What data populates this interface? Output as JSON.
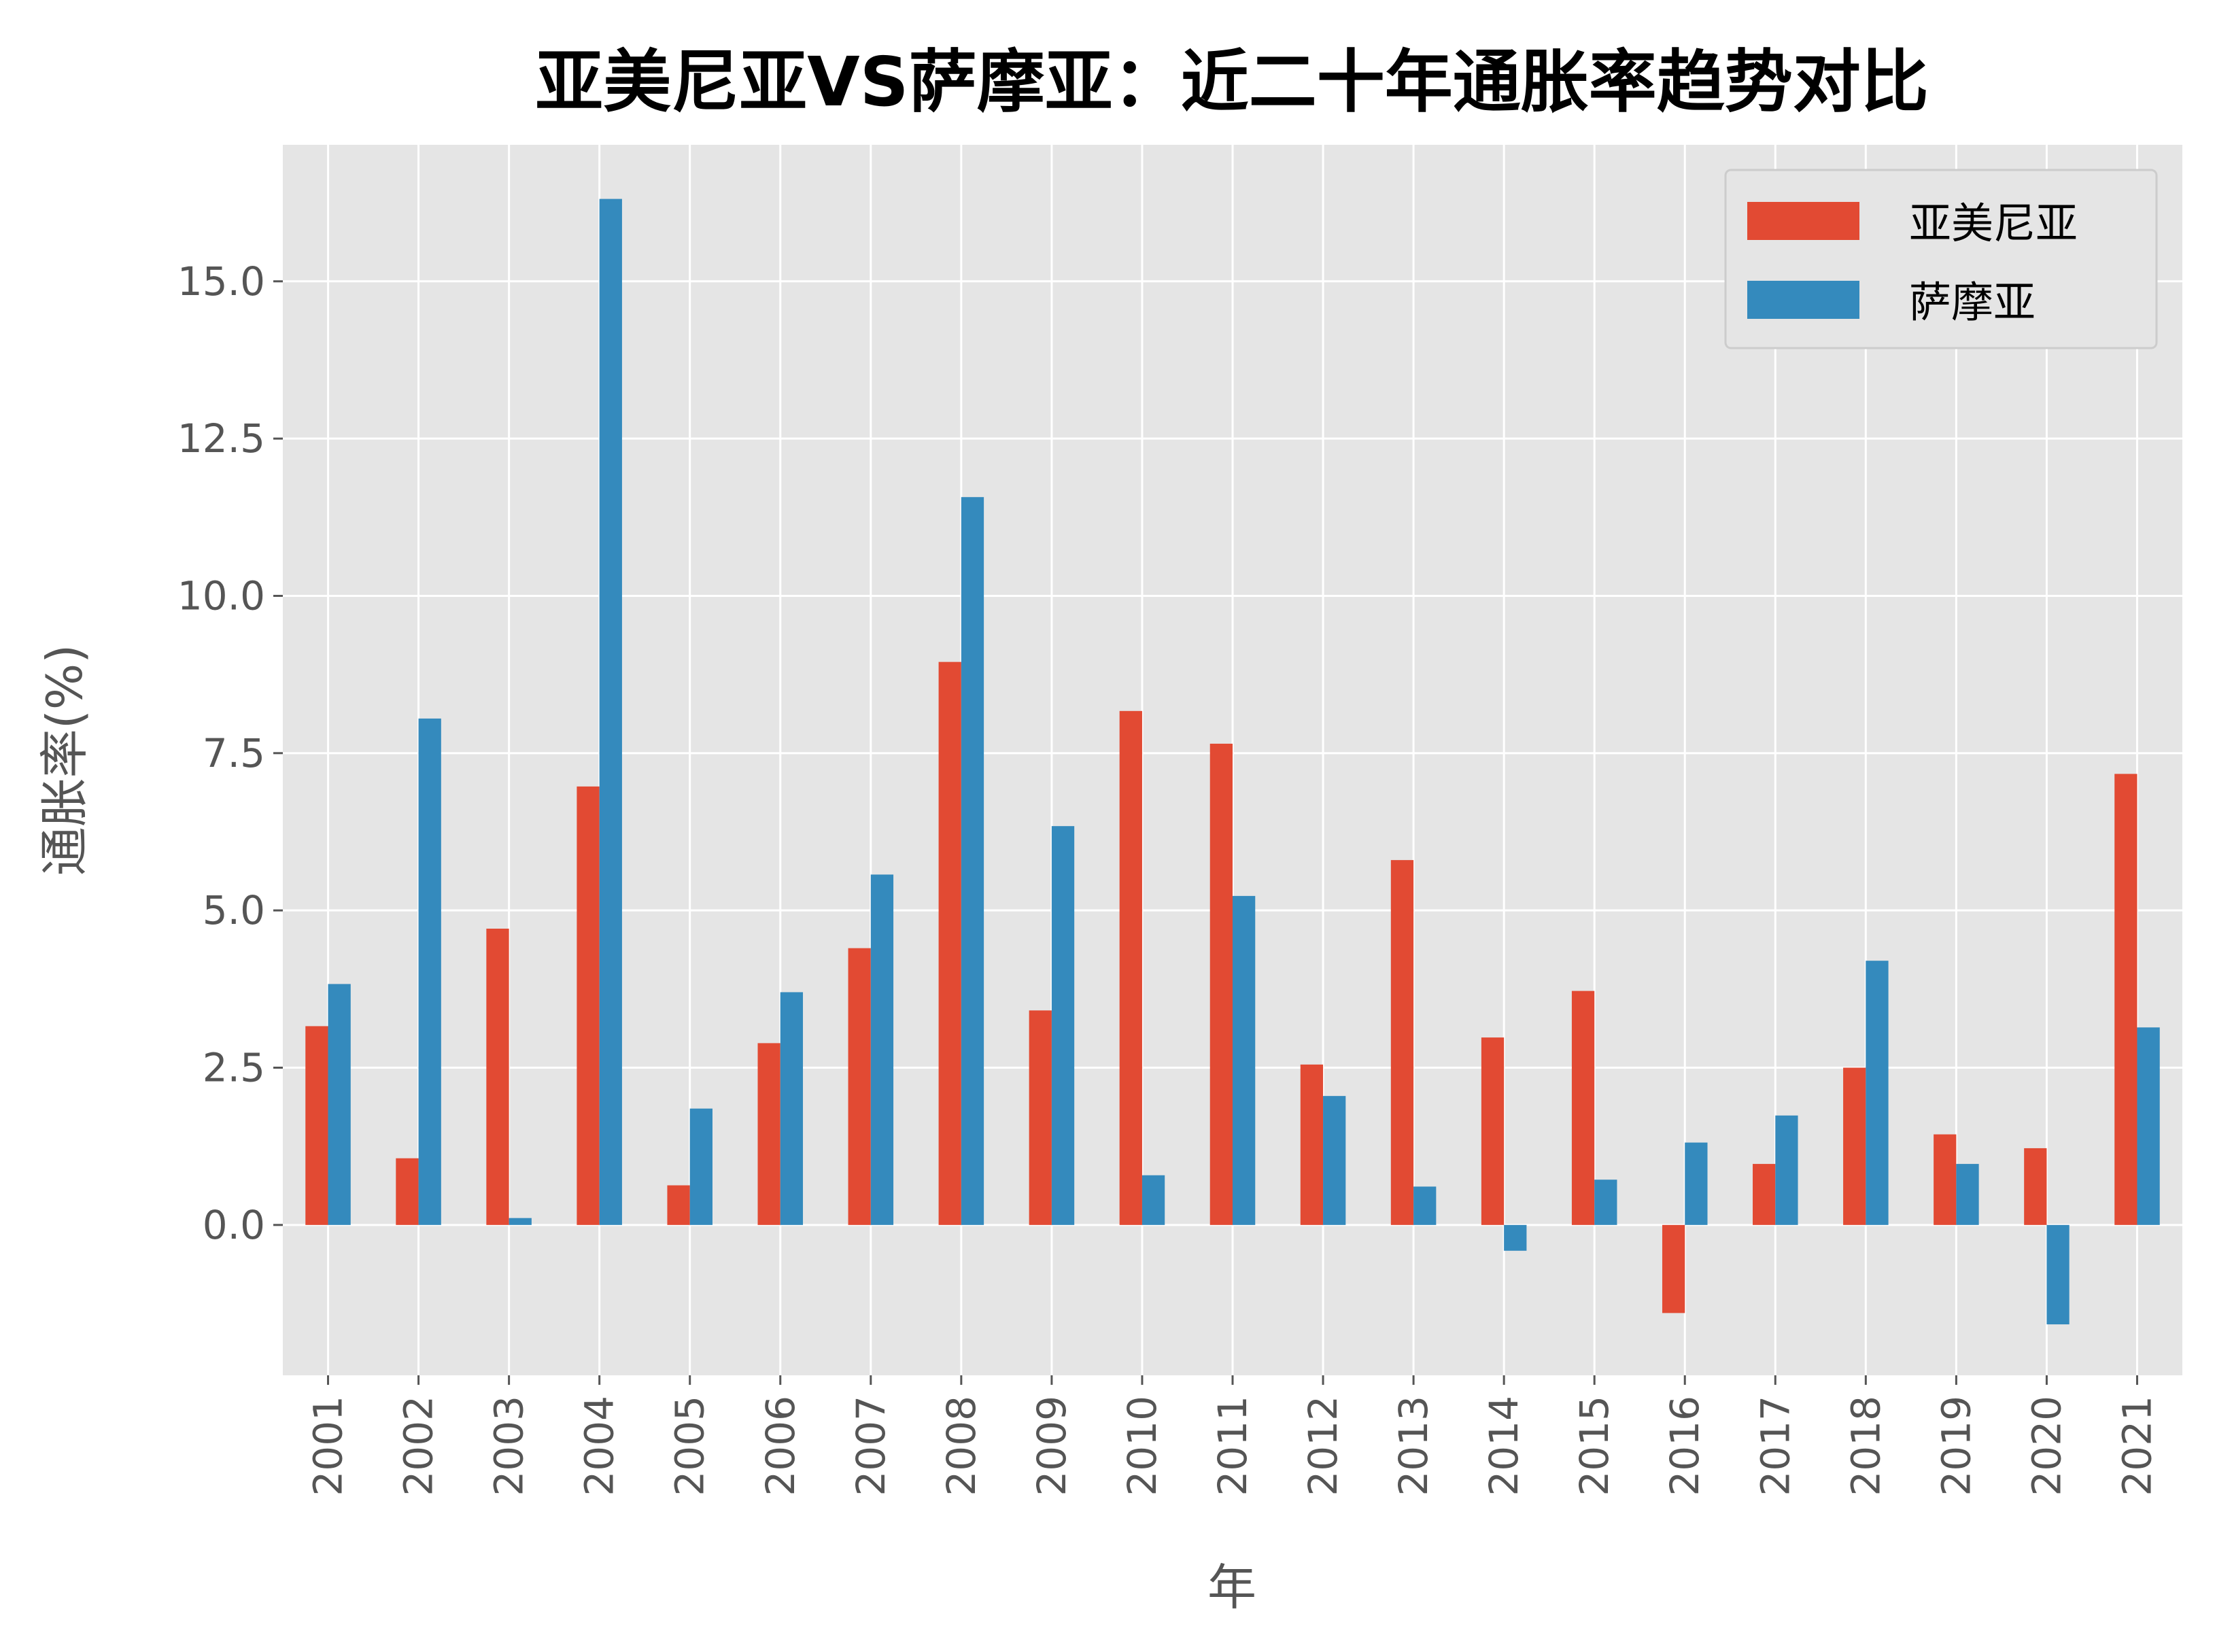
{
  "chart_data": {
    "type": "bar",
    "title": "亚美尼亚VS萨摩亚：近二十年通胀率趋势对比",
    "xlabel": "年",
    "ylabel": "通胀率(%)",
    "categories": [
      "2001",
      "2002",
      "2003",
      "2004",
      "2005",
      "2006",
      "2007",
      "2008",
      "2009",
      "2010",
      "2011",
      "2012",
      "2013",
      "2014",
      "2015",
      "2016",
      "2017",
      "2018",
      "2019",
      "2020",
      "2021"
    ],
    "series": [
      {
        "name": "亚美尼亚",
        "color": "#E24A33",
        "values": [
          3.16,
          1.06,
          4.71,
          6.97,
          0.63,
          2.89,
          4.4,
          8.95,
          3.41,
          8.17,
          7.65,
          2.55,
          5.8,
          2.98,
          3.72,
          -1.4,
          0.97,
          2.5,
          1.44,
          1.22,
          7.17
        ]
      },
      {
        "name": "萨摩亚",
        "color": "#348ABD",
        "values": [
          3.83,
          8.05,
          0.11,
          16.31,
          1.85,
          3.7,
          5.57,
          11.57,
          6.34,
          0.79,
          5.23,
          2.05,
          0.61,
          -0.41,
          0.72,
          1.31,
          1.74,
          4.2,
          0.97,
          -1.58,
          3.14
        ]
      }
    ],
    "yticks": [
      "0.0",
      "2.5",
      "5.0",
      "7.5",
      "10.0",
      "12.5",
      "15.0"
    ],
    "ylim": [
      -2.39,
      17.17
    ],
    "grid": true,
    "legend": "top-right",
    "background": "#E5E5E5"
  }
}
